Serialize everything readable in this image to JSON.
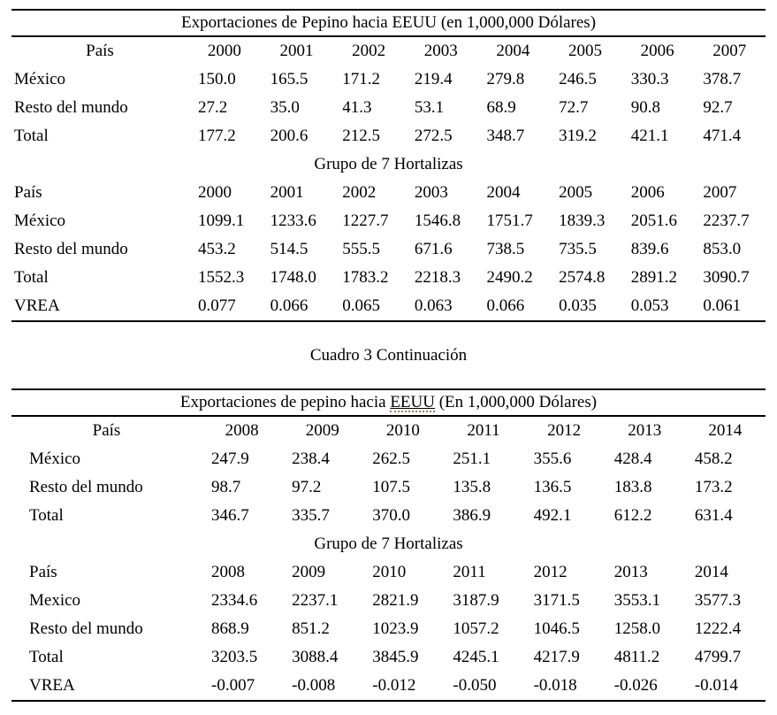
{
  "page": {
    "background": "#ffffff",
    "text_color": "#000000",
    "continuation_label": "Cuadro 3 Continuación"
  },
  "table1": {
    "title": "Exportaciones de Pepino hacia EEUU (en 1,000,000 Dólares)",
    "sections": [
      {
        "header_align": "center",
        "header": [
          "País",
          "2000",
          "2001",
          "2002",
          "2003",
          "2004",
          "2005",
          "2006",
          "2007"
        ],
        "rows": [
          [
            "México",
            "150.0",
            "165.5",
            "171.2",
            "219.4",
            "279.8",
            "246.5",
            "330.3",
            "378.7"
          ],
          [
            "Resto del mundo",
            "27.2",
            "35.0",
            "41.3",
            "53.1",
            "68.9",
            "72.7",
            "90.8",
            "92.7"
          ],
          [
            "Total",
            "177.2",
            "200.6",
            "212.5",
            "272.5",
            "348.7",
            "319.2",
            "421.1",
            "471.4"
          ]
        ]
      },
      {
        "subtitle": "Grupo de 7 Hortalizas",
        "header_align": "left",
        "header": [
          "País",
          "2000",
          "2001",
          "2002",
          "2003",
          "2004",
          "2005",
          "2006",
          "2007"
        ],
        "rows": [
          [
            "México",
            "1099.1",
            "1233.6",
            "1227.7",
            "1546.8",
            "1751.7",
            "1839.3",
            "2051.6",
            "2237.7"
          ],
          [
            "Resto del mundo",
            "453.2",
            "514.5",
            "555.5",
            "671.6",
            "738.5",
            "735.5",
            "839.6",
            "853.0"
          ],
          [
            "Total",
            "1552.3",
            "1748.0",
            "1783.2",
            "2218.3",
            "2490.2",
            "2574.8",
            "2891.2",
            "3090.7"
          ],
          [
            "VREA",
            "0.077",
            "0.066",
            "0.065",
            "0.063",
            "0.066",
            "0.035",
            "0.053",
            "0.061"
          ]
        ]
      }
    ]
  },
  "table2": {
    "title_prefix": "Exportaciones de pepino hacia ",
    "title_underlined": "EEUU",
    "title_suffix": " (En 1,000,000 Dólares)",
    "spellcheck_underline_color": "#9c8148",
    "sections": [
      {
        "header_align": "center",
        "header": [
          "País",
          "2008",
          "2009",
          "2010",
          "2011",
          "2012",
          "2013",
          "2014"
        ],
        "rows": [
          [
            "México",
            "247.9",
            "238.4",
            "262.5",
            "251.1",
            "355.6",
            "428.4",
            "458.2"
          ],
          [
            "Resto del mundo",
            "98.7",
            "97.2",
            "107.5",
            "135.8",
            "136.5",
            "183.8",
            "173.2"
          ],
          [
            "Total",
            "346.7",
            "335.7",
            "370.0",
            "386.9",
            "492.1",
            "612.2",
            "631.4"
          ]
        ]
      },
      {
        "subtitle": "Grupo de 7 Hortalizas",
        "header_align": "left",
        "header": [
          "País",
          "2008",
          "2009",
          "2010",
          "2011",
          "2012",
          "2013",
          "2014"
        ],
        "rows": [
          [
            "Mexico",
            "2334.6",
            "2237.1",
            "2821.9",
            "3187.9",
            "3171.5",
            "3553.1",
            "3577.3"
          ],
          [
            "Resto del mundo",
            "868.9",
            "851.2",
            "1023.9",
            "1057.2",
            "1046.5",
            "1258.0",
            "1222.4"
          ],
          [
            "Total",
            "3203.5",
            "3088.4",
            "3845.9",
            "4245.1",
            "4217.9",
            "4811.2",
            "4799.7"
          ],
          [
            "VREA",
            "-0.007",
            "-0.008",
            "-0.012",
            "-0.050",
            "-0.018",
            "-0.026",
            "-0.014"
          ]
        ]
      }
    ]
  }
}
